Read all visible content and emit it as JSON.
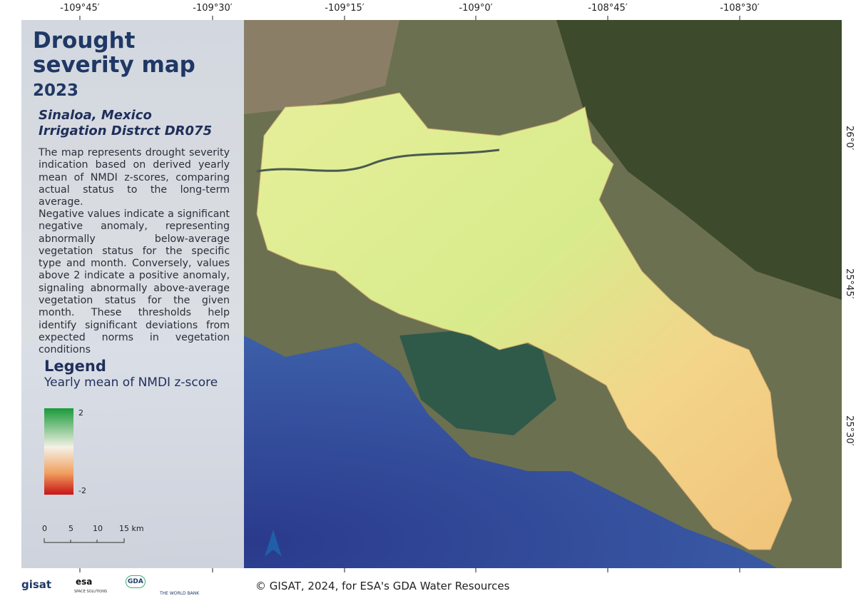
{
  "longitude_labels": [
    "-109°45′",
    "-109°30′",
    "-109°15′",
    "-109°0′",
    "-108°45′",
    "-108°30′"
  ],
  "latitude_labels": [
    "26°0′",
    "25°45′",
    "25°30′"
  ],
  "panel": {
    "title": "Drought severity map",
    "year": "2023",
    "region": "Sinaloa, Mexico",
    "district": "Irrigation Distrct DR075",
    "paragraphs": [
      "The map represents drought severity indication based on derived yearly mean of NMDI z-scores, comparing actual status to the long-term average.",
      "Negative values indicate a significant negative anomaly, representing abnormally below-average vegetation status for the specific type and month. Conversely, values above 2 indicate a positive anomaly, signaling abnormally above-average vegetation status for the given month. These thresholds help identify significant deviations from expected norms in vegetation conditions"
    ],
    "legend": {
      "title": "Legend",
      "subtitle": "Yearly mean of NMDI z-score",
      "max_label": "2",
      "min_label": "-2"
    },
    "scale_bar": [
      "0",
      "5",
      "10",
      "15 km"
    ]
  },
  "footer": {
    "logos": [
      "gisat",
      "esa",
      "SPACE SOLUTIONS",
      "GDA",
      "THE WORLD BANK"
    ],
    "credit": "© GISAT, 2024, for ESA's GDA Water Resources"
  }
}
